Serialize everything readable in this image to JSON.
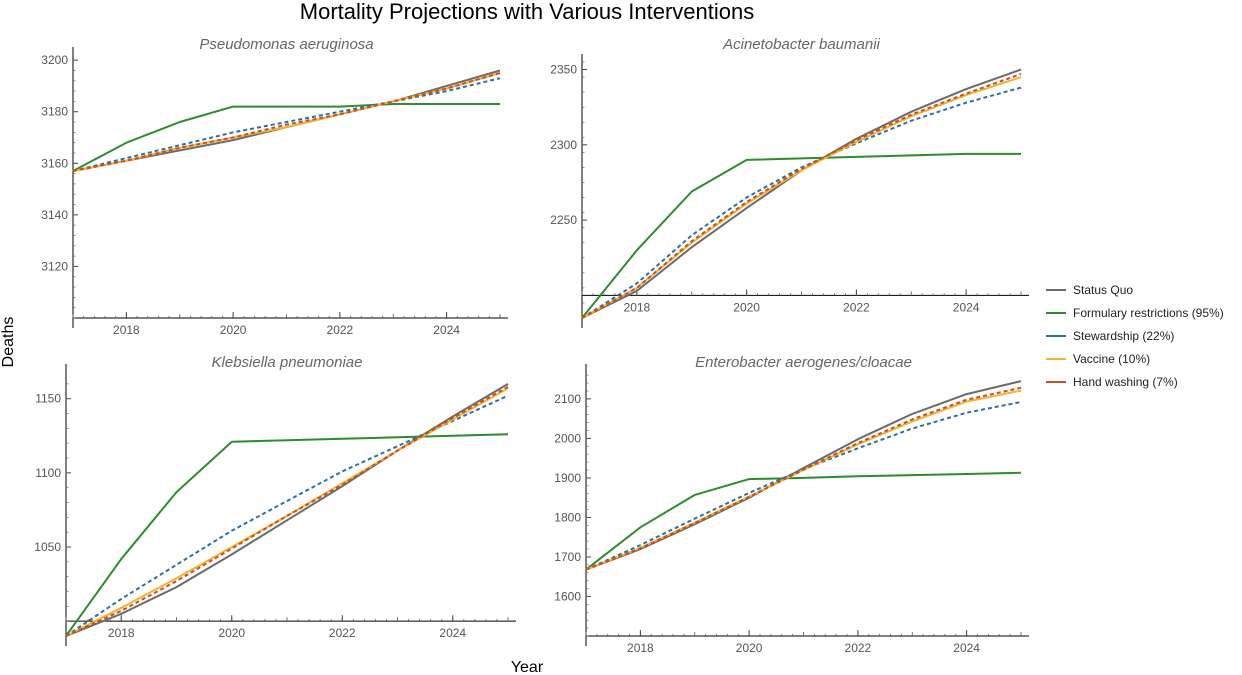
{
  "figure": {
    "title": "Mortality Projections with Various Interventions",
    "xlabel": "Year",
    "ylabel": "Deaths"
  },
  "legend": [
    {
      "name": "Status Quo",
      "color": "#6b6b6b",
      "dash": false
    },
    {
      "name": "Formulary restrictions (95%)",
      "color": "#2e8b2e",
      "dash": false
    },
    {
      "name": "Stewardship (22%)",
      "color": "#2e6da4",
      "dash": true
    },
    {
      "name": "Vaccine (10%)",
      "color": "#f2b431",
      "dash": false
    },
    {
      "name": "Hand washing (7%)",
      "color": "#c8501e",
      "dash": true
    }
  ],
  "chart_data": [
    {
      "type": "line",
      "title": "Pseudomonas aeruginosa",
      "x": [
        2017,
        2018,
        2019,
        2020,
        2021,
        2022,
        2023,
        2024,
        2025
      ],
      "xticks": [
        2018,
        2020,
        2022,
        2024
      ],
      "yticks": [
        3120,
        3140,
        3160,
        3180,
        3200
      ],
      "xlim": [
        2017,
        2025
      ],
      "ylim": [
        3100,
        3202
      ],
      "origin_y": 3100,
      "series": [
        {
          "name": "Status Quo",
          "values": [
            3157,
            3161,
            3165,
            3169,
            3174,
            3179,
            3184,
            3190,
            3196
          ]
        },
        {
          "name": "Formulary restrictions (95%)",
          "values": [
            3157,
            3168,
            3176,
            3182,
            3182,
            3182,
            3183,
            3183,
            3183
          ]
        },
        {
          "name": "Stewardship (22%)",
          "values": [
            3157,
            3162,
            3167,
            3172,
            3176,
            3180,
            3184,
            3188,
            3193
          ]
        },
        {
          "name": "Vaccine (10%)",
          "values": [
            3157,
            3161,
            3166,
            3170,
            3174,
            3179,
            3184,
            3189,
            3195
          ]
        },
        {
          "name": "Hand washing (7%)",
          "values": [
            3157,
            3161,
            3166,
            3170,
            3175,
            3179,
            3184,
            3189,
            3195
          ]
        }
      ]
    },
    {
      "type": "line",
      "title": "Acinetobacter baumanii",
      "x": [
        2017,
        2018,
        2019,
        2020,
        2021,
        2022,
        2023,
        2024,
        2025
      ],
      "xticks": [
        2018,
        2020,
        2022,
        2024
      ],
      "yticks": [
        2250,
        2300,
        2350
      ],
      "xlim": [
        2017,
        2025
      ],
      "ylim": [
        2185,
        2355
      ],
      "origin_y": 2200,
      "series": [
        {
          "name": "Status Quo",
          "values": [
            2185,
            2203,
            2232,
            2258,
            2283,
            2304,
            2322,
            2337,
            2350
          ]
        },
        {
          "name": "Formulary restrictions (95%)",
          "values": [
            2185,
            2230,
            2269,
            2290,
            2291,
            2292,
            2293,
            2294,
            2294
          ]
        },
        {
          "name": "Stewardship (22%)",
          "values": [
            2185,
            2208,
            2240,
            2265,
            2285,
            2301,
            2316,
            2328,
            2338
          ]
        },
        {
          "name": "Vaccine (10%)",
          "values": [
            2185,
            2205,
            2235,
            2261,
            2283,
            2302,
            2319,
            2333,
            2345
          ]
        },
        {
          "name": "Hand washing (7%)",
          "values": [
            2185,
            2205,
            2236,
            2262,
            2284,
            2303,
            2320,
            2334,
            2347
          ]
        }
      ]
    },
    {
      "type": "line",
      "title": "Klebsiella pneumoniae",
      "x": [
        2017,
        2018,
        2019,
        2020,
        2021,
        2022,
        2023,
        2024,
        2025
      ],
      "xticks": [
        2018,
        2020,
        2022,
        2024
      ],
      "yticks": [
        1050,
        1100,
        1150
      ],
      "xlim": [
        2017,
        2025
      ],
      "ylim": [
        990,
        1168
      ],
      "origin_y": 1000,
      "series": [
        {
          "name": "Status Quo",
          "values": [
            990,
            1005,
            1023,
            1045,
            1068,
            1091,
            1115,
            1138,
            1160
          ]
        },
        {
          "name": "Formulary restrictions (95%)",
          "values": [
            990,
            1042,
            1087,
            1121,
            1122,
            1123,
            1124,
            1125,
            1126
          ]
        },
        {
          "name": "Stewardship (22%)",
          "values": [
            990,
            1015,
            1038,
            1061,
            1081,
            1101,
            1118,
            1135,
            1152
          ]
        },
        {
          "name": "Vaccine (10%)",
          "values": [
            990,
            1009,
            1029,
            1050,
            1071,
            1093,
            1115,
            1136,
            1157
          ]
        },
        {
          "name": "Hand washing (7%)",
          "values": [
            990,
            1007,
            1027,
            1049,
            1071,
            1092,
            1115,
            1137,
            1158
          ]
        }
      ]
    },
    {
      "type": "line",
      "title": "Enterobacter aerogenes/cloacae",
      "x": [
        2017,
        2018,
        2019,
        2020,
        2021,
        2022,
        2023,
        2024,
        2025
      ],
      "xticks": [
        2018,
        2020,
        2022,
        2024
      ],
      "yticks": [
        1600,
        1700,
        1800,
        1900,
        2000,
        2100
      ],
      "xlim": [
        2017,
        2025
      ],
      "ylim": [
        1500,
        2168
      ],
      "origin_y": 1500,
      "series": [
        {
          "name": "Status Quo",
          "values": [
            1668,
            1720,
            1783,
            1850,
            1925,
            1998,
            2062,
            2112,
            2145
          ]
        },
        {
          "name": "Formulary restrictions (95%)",
          "values": [
            1668,
            1775,
            1857,
            1897,
            1900,
            1904,
            1907,
            1910,
            1913
          ]
        },
        {
          "name": "Stewardship (22%)",
          "values": [
            1668,
            1730,
            1797,
            1862,
            1922,
            1975,
            2025,
            2065,
            2092
          ]
        },
        {
          "name": "Vaccine (10%)",
          "values": [
            1668,
            1723,
            1787,
            1853,
            1920,
            1985,
            2043,
            2093,
            2121
          ]
        },
        {
          "name": "Hand washing (7%)",
          "values": [
            1668,
            1722,
            1786,
            1852,
            1921,
            1988,
            2048,
            2098,
            2128
          ]
        }
      ]
    }
  ]
}
